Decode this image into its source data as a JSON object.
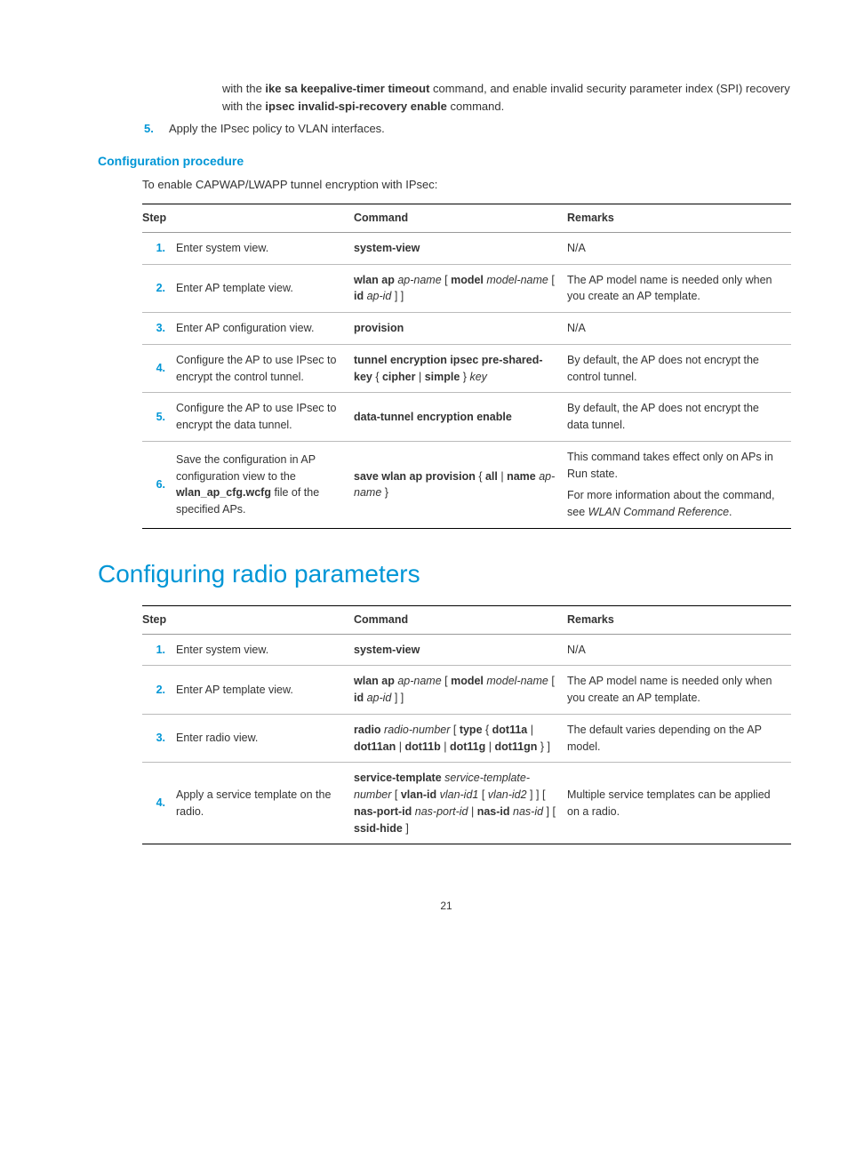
{
  "intro": {
    "line1_a": "with the ",
    "line1_bold": "ike sa keepalive-timer timeout",
    "line1_b": " command, and enable invalid security parameter index (SPI) recovery with the ",
    "line1_bold2": "ipsec invalid-spi-recovery enable",
    "line1_c": " command."
  },
  "step5": {
    "num": "5.",
    "text": "Apply the IPsec policy to VLAN interfaces."
  },
  "headings": {
    "config_proc": "Configuration procedure",
    "config_lead": "To enable CAPWAP/LWAPP tunnel encryption with IPsec:",
    "radio_params": "Configuring radio parameters"
  },
  "table_headers": {
    "step": "Step",
    "command": "Command",
    "remarks": "Remarks"
  },
  "table1": [
    {
      "n": "1.",
      "step": "Enter system view.",
      "cmd": [
        {
          "b": "system-view"
        }
      ],
      "rem": [
        {
          "t": "N/A"
        }
      ]
    },
    {
      "n": "2.",
      "step": "Enter AP template view.",
      "cmd": [
        {
          "b": "wlan ap "
        },
        {
          "i": "ap-name"
        },
        {
          "t": " [ "
        },
        {
          "b": "model"
        },
        {
          "t": " "
        },
        {
          "i": "model-name"
        },
        {
          "t": " [ "
        },
        {
          "b": "id"
        },
        {
          "t": " "
        },
        {
          "i": "ap-id"
        },
        {
          "t": " ] ]"
        }
      ],
      "rem": [
        {
          "t": "The AP model name is needed only when you create an AP template."
        }
      ]
    },
    {
      "n": "3.",
      "step": "Enter AP configuration view.",
      "cmd": [
        {
          "b": "provision"
        }
      ],
      "rem": [
        {
          "t": "N/A"
        }
      ]
    },
    {
      "n": "4.",
      "step": "Configure the AP to use IPsec to encrypt the control tunnel.",
      "cmd": [
        {
          "b": "tunnel encryption ipsec pre-shared-key"
        },
        {
          "t": " { "
        },
        {
          "b": "cipher"
        },
        {
          "t": " | "
        },
        {
          "b": "simple"
        },
        {
          "t": " } "
        },
        {
          "i": "key"
        }
      ],
      "rem": [
        {
          "t": "By default, the AP does not encrypt the control tunnel."
        }
      ]
    },
    {
      "n": "5.",
      "step": "Configure the AP to use IPsec to encrypt the data tunnel.",
      "cmd": [
        {
          "b": "data-tunnel encryption enable"
        }
      ],
      "rem": [
        {
          "t": "By default, the AP does not encrypt the data tunnel."
        }
      ]
    },
    {
      "n": "6.",
      "step_parts": [
        {
          "t": "Save the configuration in AP configuration view to the "
        },
        {
          "b": "wlan_ap_cfg.wcfg"
        },
        {
          "t": " file of the specified APs."
        }
      ],
      "cmd": [
        {
          "b": "save wlan ap provision"
        },
        {
          "t": " { "
        },
        {
          "b": "all"
        },
        {
          "t": " | "
        },
        {
          "b": "name"
        },
        {
          "t": " "
        },
        {
          "i": "ap-name"
        },
        {
          "t": " }"
        }
      ],
      "rem_multi": [
        [
          {
            "t": "This command takes effect only on APs in Run state."
          }
        ],
        [
          {
            "t": "For more information about the command, see "
          },
          {
            "i": "WLAN Command Reference"
          },
          {
            "t": "."
          }
        ]
      ]
    }
  ],
  "table2": [
    {
      "n": "1.",
      "step": "Enter system view.",
      "cmd": [
        {
          "b": "system-view"
        }
      ],
      "rem": [
        {
          "t": "N/A"
        }
      ]
    },
    {
      "n": "2.",
      "step": "Enter AP template view.",
      "cmd": [
        {
          "b": "wlan ap "
        },
        {
          "i": "ap-name"
        },
        {
          "t": " [ "
        },
        {
          "b": "model"
        },
        {
          "t": " "
        },
        {
          "i": "model-name"
        },
        {
          "t": " [ "
        },
        {
          "b": "id"
        },
        {
          "t": " "
        },
        {
          "i": "ap-id"
        },
        {
          "t": " ] ]"
        }
      ],
      "rem": [
        {
          "t": "The AP model name is needed only when you create an AP template."
        }
      ]
    },
    {
      "n": "3.",
      "step": "Enter radio view.",
      "cmd": [
        {
          "b": "radio "
        },
        {
          "i": "radio-number"
        },
        {
          "t": " [ "
        },
        {
          "b": "type"
        },
        {
          "t": " { "
        },
        {
          "b": "dot11a"
        },
        {
          "t": " | "
        },
        {
          "b": "dot11an"
        },
        {
          "t": " | "
        },
        {
          "b": "dot11b"
        },
        {
          "t": " | "
        },
        {
          "b": "dot11g"
        },
        {
          "t": " | "
        },
        {
          "b": "dot11gn"
        },
        {
          "t": " } ]"
        }
      ],
      "rem": [
        {
          "t": "The default varies depending on the AP model."
        }
      ]
    },
    {
      "n": "4.",
      "step": "Apply a service template on the radio.",
      "cmd": [
        {
          "b": "service-template"
        },
        {
          "t": " "
        },
        {
          "i": "service-template-number"
        },
        {
          "t": " [ "
        },
        {
          "b": "vlan-id"
        },
        {
          "t": " "
        },
        {
          "i": "vlan-id1"
        },
        {
          "t": " [ "
        },
        {
          "i": "vlan-id2"
        },
        {
          "t": " ] ] [ "
        },
        {
          "b": "nas-port-id"
        },
        {
          "t": " "
        },
        {
          "i": "nas-port-id"
        },
        {
          "t": " | "
        },
        {
          "b": "nas-id"
        },
        {
          "t": " "
        },
        {
          "i": "nas-id"
        },
        {
          "t": " ] [ "
        },
        {
          "b": "ssid-hide"
        },
        {
          "t": " ]"
        }
      ],
      "rem": [
        {
          "t": "Multiple service templates can be applied on a radio."
        }
      ]
    }
  ],
  "page_number": "21"
}
